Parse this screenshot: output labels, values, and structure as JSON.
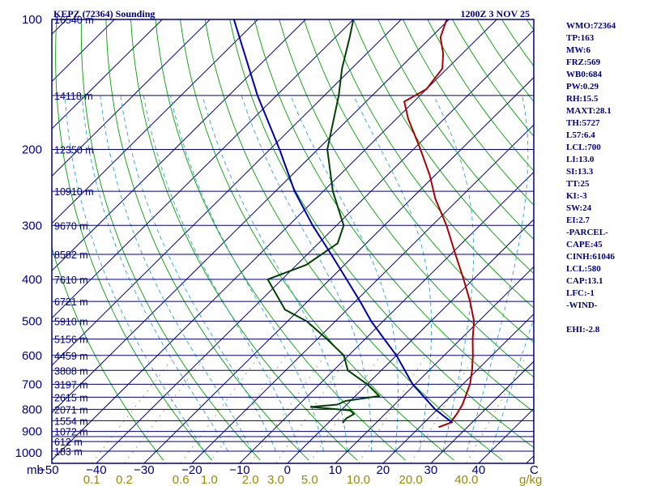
{
  "chart_data": {
    "type": "skew-t sounding",
    "title": "KEPZ (72364) Sounding",
    "time": "1200Z  3 NOV 25",
    "axis_corner_label": "mb",
    "pressure_levels": [
      100,
      150,
      200,
      250,
      300,
      350,
      400,
      450,
      500,
      550,
      600,
      650,
      700,
      750,
      800,
      850,
      900,
      925,
      950,
      1000
    ],
    "pressure_tick_labels": [
      {
        "p": 100,
        "text": "100"
      },
      {
        "p": 200,
        "text": "200"
      },
      {
        "p": 300,
        "text": "300"
      },
      {
        "p": 400,
        "text": "400"
      },
      {
        "p": 500,
        "text": "500"
      },
      {
        "p": 600,
        "text": "600"
      },
      {
        "p": 700,
        "text": "700"
      },
      {
        "p": 800,
        "text": "800"
      },
      {
        "p": 900,
        "text": "900"
      },
      {
        "p": 1000,
        "text": "1000"
      }
    ],
    "height_labels": [
      {
        "p": 100,
        "text": "16540 m"
      },
      {
        "p": 150,
        "text": "14118 m"
      },
      {
        "p": 200,
        "text": "12350 m"
      },
      {
        "p": 250,
        "text": "10910 m"
      },
      {
        "p": 300,
        "text": "9670 m"
      },
      {
        "p": 350,
        "text": "8582 m"
      },
      {
        "p": 400,
        "text": "7610 m"
      },
      {
        "p": 450,
        "text": "6721 m"
      },
      {
        "p": 500,
        "text": "5910 m"
      },
      {
        "p": 550,
        "text": "5156 m"
      },
      {
        "p": 600,
        "text": "4459 m"
      },
      {
        "p": 650,
        "text": "3808 m"
      },
      {
        "p": 700,
        "text": "3197 m"
      },
      {
        "p": 750,
        "text": "2615 m"
      },
      {
        "p": 800,
        "text": "2071 m"
      },
      {
        "p": 850,
        "text": "1554 m"
      },
      {
        "p": 900,
        "text": "1072 m"
      },
      {
        "p": 950,
        "text": "612 m"
      },
      {
        "p": 1000,
        "text": "183 m"
      }
    ],
    "temperature_ticks": [
      -50,
      -40,
      -30,
      -20,
      -10,
      0,
      10,
      20,
      30,
      40
    ],
    "temperature_tick_labels": [
      "−50",
      "−40",
      "−30",
      "−20",
      "−10",
      "0",
      "10",
      "20",
      "30",
      "40"
    ],
    "temperature_unit_label": "C",
    "mixing_ratio_labels": [
      "0.1",
      "0.2",
      "0.6",
      "1.0",
      "2.0",
      "3.0",
      "5.0",
      "10.0",
      "20.0",
      "40.0"
    ],
    "mixing_ratio_values": [
      0.1,
      0.2,
      0.6,
      1.0,
      2.0,
      3.0,
      5.0,
      10.0,
      20.0,
      40.0
    ],
    "mixing_ratio_unit": "g/kg",
    "temperature_profile": [
      {
        "p": 880,
        "t": 24.0
      },
      {
        "p": 860,
        "t": 25.5
      },
      {
        "p": 820,
        "t": 25.0
      },
      {
        "p": 780,
        "t": 24.2
      },
      {
        "p": 700,
        "t": 21.5
      },
      {
        "p": 650,
        "t": 19.0
      },
      {
        "p": 600,
        "t": 16.0
      },
      {
        "p": 550,
        "t": 12.5
      },
      {
        "p": 500,
        "t": 9.0
      },
      {
        "p": 450,
        "t": 4.0
      },
      {
        "p": 400,
        "t": -2.0
      },
      {
        "p": 350,
        "t": -9.0
      },
      {
        "p": 300,
        "t": -17.0
      },
      {
        "p": 260,
        "t": -25.0
      },
      {
        "p": 230,
        "t": -31.0
      },
      {
        "p": 200,
        "t": -38.5
      },
      {
        "p": 170,
        "t": -47.5
      },
      {
        "p": 155,
        "t": -52.0
      },
      {
        "p": 145,
        "t": -50.0
      },
      {
        "p": 130,
        "t": -51.0
      },
      {
        "p": 120,
        "t": -54.0
      },
      {
        "p": 110,
        "t": -58.0
      },
      {
        "p": 100,
        "t": -60.5
      }
    ],
    "dewpoint_profile": [
      {
        "p": 860,
        "t": 3.0
      },
      {
        "p": 840,
        "t": 2.8
      },
      {
        "p": 820,
        "t": 3.5
      },
      {
        "p": 805,
        "t": 2.0
      },
      {
        "p": 790,
        "t": -7.0
      },
      {
        "p": 780,
        "t": -2.0
      },
      {
        "p": 765,
        "t": -1.0
      },
      {
        "p": 745,
        "t": 5.0
      },
      {
        "p": 700,
        "t": 0.0
      },
      {
        "p": 650,
        "t": -7.0
      },
      {
        "p": 600,
        "t": -11.0
      },
      {
        "p": 550,
        "t": -18.0
      },
      {
        "p": 500,
        "t": -26.0
      },
      {
        "p": 470,
        "t": -33.0
      },
      {
        "p": 400,
        "t": -43.0
      },
      {
        "p": 370,
        "t": -38.0
      },
      {
        "p": 330,
        "t": -36.0
      },
      {
        "p": 300,
        "t": -38.5
      },
      {
        "p": 250,
        "t": -48.0
      },
      {
        "p": 200,
        "t": -58.0
      },
      {
        "p": 150,
        "t": -67.0
      },
      {
        "p": 130,
        "t": -72.0
      },
      {
        "p": 110,
        "t": -77.0
      },
      {
        "p": 100,
        "t": -80.0
      }
    ],
    "parcel_profile": [
      {
        "p": 860,
        "t": 26.0
      },
      {
        "p": 800,
        "t": 19.5
      },
      {
        "p": 700,
        "t": 9.5
      },
      {
        "p": 600,
        "t": 0.0
      },
      {
        "p": 550,
        "t": -6.0
      },
      {
        "p": 500,
        "t": -12.5
      },
      {
        "p": 450,
        "t": -19.0
      },
      {
        "p": 400,
        "t": -26.5
      },
      {
        "p": 350,
        "t": -35.0
      },
      {
        "p": 300,
        "t": -45.0
      },
      {
        "p": 250,
        "t": -56.0
      },
      {
        "p": 200,
        "t": -68.0
      },
      {
        "p": 150,
        "t": -84.0
      },
      {
        "p": 100,
        "t": -105.0
      }
    ]
  },
  "indices": [
    "WMO:72364",
    "TP:163",
    "MW:6",
    "FRZ:569",
    "WB0:684",
    "PW:0.29",
    "RH:15.5",
    "MAXT:28.1",
    "TH:5727",
    "L57:6.4",
    "LCL:700",
    "LI:13.0",
    "SI:13.3",
    "TT:25",
    "KI:-3",
    "SW:24",
    "EI:2.7",
    "-PARCEL-",
    "CAPE:45",
    "CINH:61046",
    "LCL:580",
    "CAP:13.1",
    "LFC:-1",
    "-WIND-",
    "",
    "EHI:-2.8"
  ],
  "colors": {
    "frame": "#000080",
    "isobar": "#000080",
    "isotherm": "#000080",
    "dry_adiabat": "#00a000",
    "moist_adiabat": "#2aa3c8",
    "mixing_ratio": "#a89030",
    "temperature": "#aa0000",
    "dewpoint": "#004000",
    "parcel": "#0000aa"
  }
}
